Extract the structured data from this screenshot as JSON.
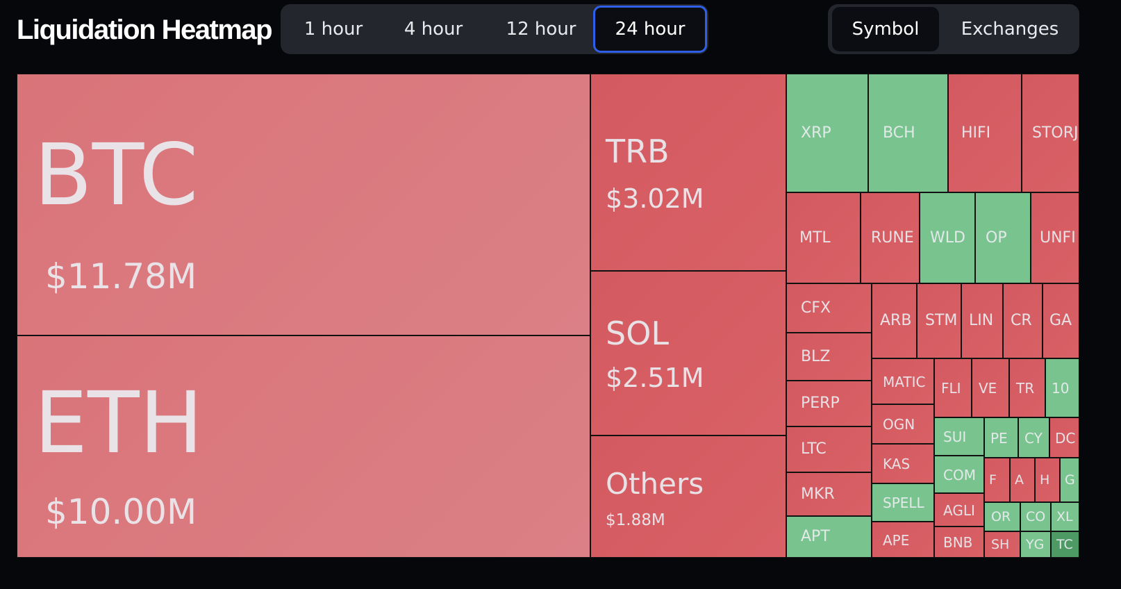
{
  "header": {
    "title": "Liquidation Heatmap",
    "time_tabs": [
      {
        "label": "1 hour"
      },
      {
        "label": "4 hour"
      },
      {
        "label": "12 hour"
      },
      {
        "label": "24 hour"
      }
    ],
    "time_selected": "24 hour",
    "view_tabs": [
      {
        "label": "Symbol"
      },
      {
        "label": "Exchanges"
      }
    ],
    "view_selected": "Symbol"
  },
  "colors": {
    "long_liquidation_red": "#d35a60",
    "major_red": "#d97479",
    "short_liquidation_green": "#79c48e",
    "selected_tab_border": "#2f5fe8"
  },
  "chart_data": {
    "type": "heatmap",
    "labeled_values": [
      {
        "symbol": "BTC",
        "value_label": "$11.78M",
        "value": 11.78,
        "color": "red"
      },
      {
        "symbol": "ETH",
        "value_label": "$10.00M",
        "value": 10.0,
        "color": "red"
      },
      {
        "symbol": "TRB",
        "value_label": "$3.02M",
        "value": 3.02,
        "color": "red"
      },
      {
        "symbol": "SOL",
        "value_label": "$2.51M",
        "value": 2.51,
        "color": "red"
      },
      {
        "symbol": "Others",
        "value_label": "$1.88M",
        "value": 1.88,
        "color": "red"
      }
    ],
    "symbols": [
      {
        "name": "XRP",
        "color": "green"
      },
      {
        "name": "BCH",
        "color": "green"
      },
      {
        "name": "HIFI",
        "color": "red"
      },
      {
        "name": "STORJ",
        "color": "red"
      },
      {
        "name": "MTL",
        "color": "red"
      },
      {
        "name": "RUNE",
        "color": "red"
      },
      {
        "name": "WLD",
        "color": "green"
      },
      {
        "name": "OP",
        "color": "green"
      },
      {
        "name": "UNFI",
        "color": "red"
      },
      {
        "name": "CFX",
        "color": "red"
      },
      {
        "name": "ARB",
        "color": "red"
      },
      {
        "name": "STM",
        "color": "red"
      },
      {
        "name": "LIN",
        "color": "red"
      },
      {
        "name": "CR",
        "color": "red"
      },
      {
        "name": "GA",
        "color": "red"
      },
      {
        "name": "BLZ",
        "color": "red"
      },
      {
        "name": "MATIC",
        "color": "red"
      },
      {
        "name": "FLI",
        "color": "red"
      },
      {
        "name": "VE",
        "color": "red"
      },
      {
        "name": "TR",
        "color": "red"
      },
      {
        "name": "10",
        "color": "green"
      },
      {
        "name": "PERP",
        "color": "red"
      },
      {
        "name": "OGN",
        "color": "red"
      },
      {
        "name": "SUI",
        "color": "green"
      },
      {
        "name": "PE",
        "color": "green"
      },
      {
        "name": "CY",
        "color": "green"
      },
      {
        "name": "DC",
        "color": "red"
      },
      {
        "name": "LTC",
        "color": "red"
      },
      {
        "name": "KAS",
        "color": "red"
      },
      {
        "name": "COM",
        "color": "green"
      },
      {
        "name": "F",
        "color": "red"
      },
      {
        "name": "A",
        "color": "red"
      },
      {
        "name": "H",
        "color": "red"
      },
      {
        "name": "G",
        "color": "green"
      },
      {
        "name": "MKR",
        "color": "red"
      },
      {
        "name": "SPELL",
        "color": "green"
      },
      {
        "name": "AGLI",
        "color": "red"
      },
      {
        "name": "OR",
        "color": "green"
      },
      {
        "name": "CO",
        "color": "green"
      },
      {
        "name": "XL",
        "color": "green"
      },
      {
        "name": "APT",
        "color": "green"
      },
      {
        "name": "APE",
        "color": "red"
      },
      {
        "name": "BNB",
        "color": "red"
      },
      {
        "name": "SH",
        "color": "red"
      },
      {
        "name": "YG",
        "color": "green"
      },
      {
        "name": "TC",
        "color": "green"
      }
    ]
  }
}
